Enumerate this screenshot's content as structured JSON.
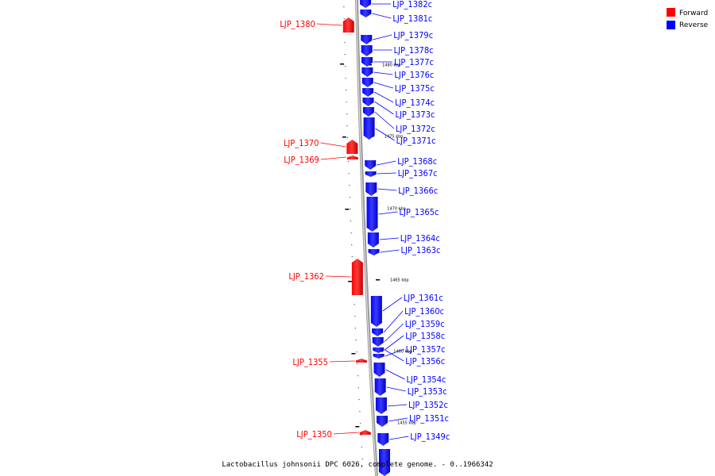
{
  "caption": "Lactobacillus johnsonii DPC 6026, complete genome. - 0..1966342",
  "legend": [
    {
      "label": "Forward",
      "color": "#ff0000"
    },
    {
      "label": "Reverse",
      "color": "#0000ff"
    }
  ],
  "ticks": [
    "1480 kbp",
    "1475 kbp",
    "1470 kbp",
    "1465 kbp",
    "1460 kbp",
    "1455 kbp"
  ],
  "forward_genes": [
    "LJP_1380",
    "LJP_1370",
    "LJP_1369",
    "LJP_1362",
    "LJP_1355",
    "LJP_1350"
  ],
  "reverse_genes": [
    "LJP_1382c",
    "LJP_1381c",
    "LJP_1379c",
    "LJP_1378c",
    "LJP_1377c",
    "LJP_1376c",
    "LJP_1375c",
    "LJP_1374c",
    "LJP_1373c",
    "LJP_1372c",
    "LJP_1371c",
    "LJP_1368c",
    "LJP_1367c",
    "LJP_1366c",
    "LJP_1365c",
    "LJP_1364c",
    "LJP_1363c",
    "LJP_1361c",
    "LJP_1360c",
    "LJP_1359c",
    "LJP_1358c",
    "LJP_1357c",
    "LJP_1356c",
    "LJP_1354c",
    "LJP_1353c",
    "LJP_1352c",
    "LJP_1351c",
    "LJP_1349c"
  ]
}
